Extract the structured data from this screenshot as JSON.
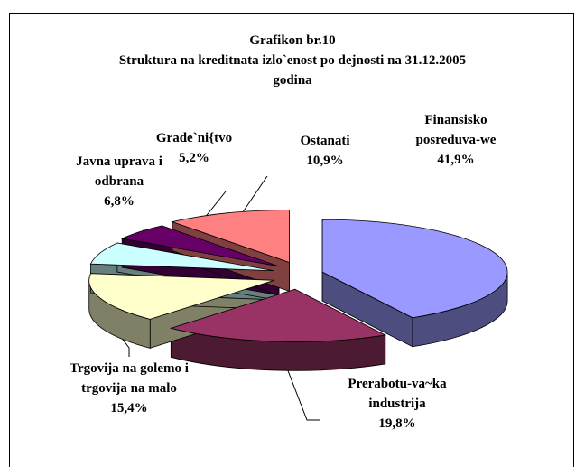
{
  "chart_data": {
    "type": "pie",
    "title": "Grafikon br.10",
    "subtitle": "Struktura na kreditnata izlo`enost po dejnosti na 31.12.2005 godina",
    "categories": [
      "Finansisko posreduva-we",
      "Prerabotu-va~ka industrija",
      "Trgovija na golemo i trgovija na malo",
      "Javna uprava i odbrana",
      "Grade`ni{tvo",
      "Ostanati"
    ],
    "values": [
      41.9,
      19.8,
      15.4,
      6.8,
      5.2,
      10.9
    ],
    "value_labels": [
      "41,9%",
      "19,8%",
      "15,4%",
      "6,8%",
      "5,2%",
      "10,9%"
    ],
    "colors": [
      "#9999ff",
      "#993366",
      "#ffffcc",
      "#ccffff",
      "#660066",
      "#ff8080"
    ]
  }
}
